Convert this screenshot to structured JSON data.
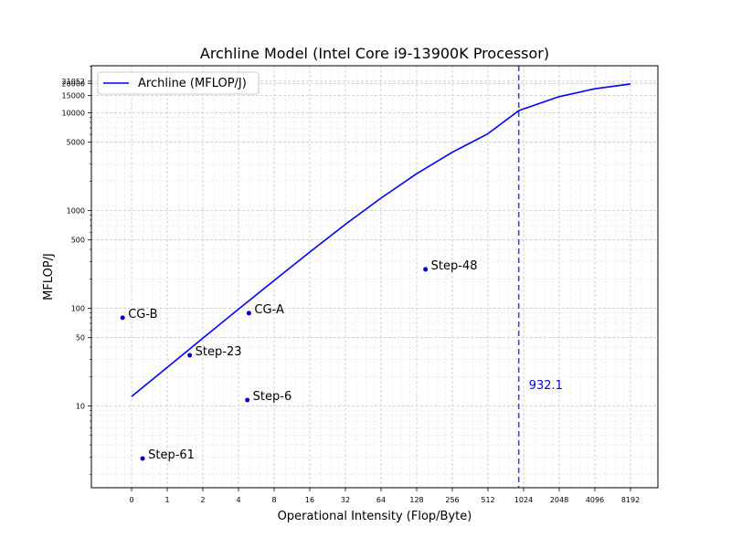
{
  "chart_data": {
    "type": "line",
    "title": "Archline Model (Intel Core i9-13900K Processor)",
    "xlabel": "Operational Intensity (Flop/Byte)",
    "ylabel": "MFLOP/J",
    "x_scale": "log2",
    "y_scale": "log10",
    "grid": true,
    "legend_position": "top-left",
    "line_color": "#0000ff",
    "point_color": "#0000cc",
    "x_tick_labels": [
      "0",
      "1",
      "2",
      "4",
      "8",
      "16",
      "32",
      "64",
      "128",
      "256",
      "512",
      "1024",
      "2048",
      "4096",
      "8192"
    ],
    "y_tick_values": [
      10,
      50,
      100,
      500,
      1000,
      5000,
      10000,
      15000,
      20000,
      21052
    ],
    "y_tick_labels": [
      "10",
      "50",
      "100",
      "500",
      "1000",
      "5000",
      "10000",
      "15000",
      "20000",
      "21052"
    ],
    "series": [
      {
        "name": "Archline (MFLOP/J)",
        "x": [
          0.5,
          1,
          2,
          4,
          8,
          16,
          32,
          64,
          128,
          256,
          512,
          932.1,
          2048,
          4096,
          8192
        ],
        "y": [
          12.5,
          24.8,
          49.4,
          97.9,
          192.5,
          376,
          722,
          1340,
          2380,
          3950,
          6110,
          10526,
          14650,
          17600,
          19750
        ]
      }
    ],
    "points": [
      {
        "label": "CG-B",
        "x": 0.42,
        "y": 80
      },
      {
        "label": "Step-23",
        "x": 1.55,
        "y": 33
      },
      {
        "label": "CG-A",
        "x": 4.9,
        "y": 89
      },
      {
        "label": "Step-6",
        "x": 4.75,
        "y": 11.5
      },
      {
        "label": "Step-48",
        "x": 152,
        "y": 250
      },
      {
        "label": "Step-61",
        "x": 0.62,
        "y": 2.9
      }
    ],
    "ridge": {
      "x": 932.1,
      "label": "932.1",
      "color": "#0000ff"
    }
  }
}
